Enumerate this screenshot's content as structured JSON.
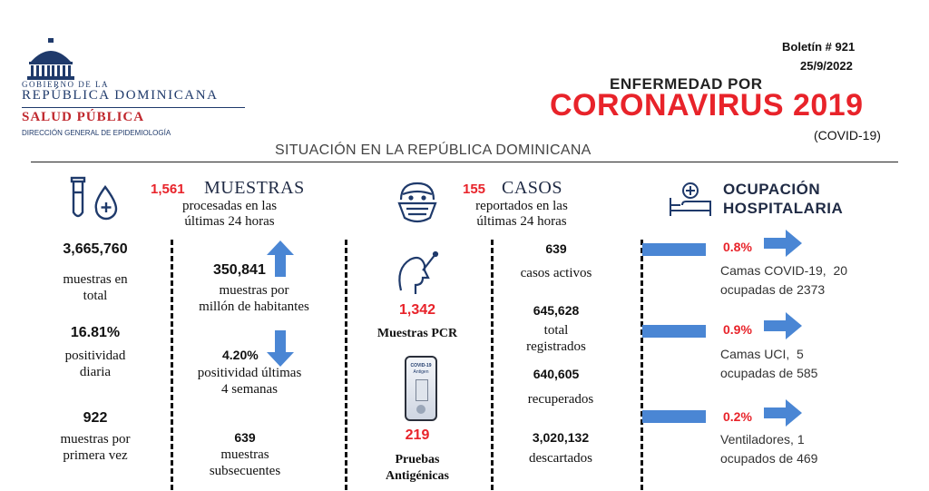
{
  "header": {
    "gov_line": "GOBIERNO DE LA",
    "country": "REPÚBLICA DOMINICANA",
    "ministry": "SALUD PÚBLICA",
    "direction": "DIRECCIÓN GENERAL DE EPIDEMIOLOGÍA",
    "bulletin": "Boletín # 921",
    "date": "25/9/2022",
    "title_top": "ENFERMEDAD POR",
    "title_main": "CORONAVIRUS 2019",
    "title_sub": "(COVID-19)",
    "situation": "SITUACIÓN EN LA REPÚBLICA DOMINICANA"
  },
  "muestras": {
    "header_value": "1,561",
    "header_title": "MUESTRAS",
    "header_desc_1": "procesadas en las",
    "header_desc_2": "últimas 24 horas",
    "total_value": "3,665,760",
    "total_label_1": "muestras en",
    "total_label_2": "total",
    "positividad_value": "16.81%",
    "positividad_label_1": "positividad",
    "positividad_label_2": "diaria",
    "primera_value": "922",
    "primera_label_1": "muestras por",
    "primera_label_2": "primera vez",
    "por_millon_value": "350,841",
    "por_millon_label_1": "muestras por",
    "por_millon_label_2": "millón de habitantes",
    "pos4_value": "4.20%",
    "pos4_label_1": "positividad últimas",
    "pos4_label_2": "4 semanas",
    "subsecuentes_value": "639",
    "subsecuentes_label_1": "muestras",
    "subsecuentes_label_2": "subsecuentes"
  },
  "pruebas": {
    "pcr_value": "1,342",
    "pcr_label": "Muestras PCR",
    "antigen_value": "219",
    "antigen_label_1": "Pruebas",
    "antigen_label_2": "Antigénicas",
    "kit_label_1": "COVID-19",
    "kit_label_2": "Antigen"
  },
  "casos": {
    "header_value": "155",
    "header_title": "CASOS",
    "header_desc_1": "reportados en las",
    "header_desc_2": "últimas 24 horas",
    "activos_value": "639",
    "activos_label": "casos activos",
    "total_value": "645,628",
    "total_label_1": "total",
    "total_label_2": "registrados",
    "recuperados_value": "640,605",
    "recuperados_label": "recuperados",
    "descartados_value": "3,020,132",
    "descartados_label": "descartados"
  },
  "ocupacion": {
    "title_1": "OCUPACIÓN",
    "title_2": "HOSPITALARIA",
    "covid_pct": "0.8%",
    "covid_label_1": "Camas COVID-19,  20",
    "covid_label_2": "ocupadas de 2373",
    "uci_pct": "0.9%",
    "uci_label_1": "Camas UCI,  5",
    "uci_label_2": "ocupadas de 585",
    "vent_pct": "0.2%",
    "vent_label_1": "Ventiladores, 1",
    "vent_label_2": "ocupados de 469"
  },
  "colors": {
    "accent_red": "#e8232a",
    "arrow_blue": "#4a86d4",
    "logo_blue": "#1f3a6b",
    "logo_red": "#c0272d"
  }
}
